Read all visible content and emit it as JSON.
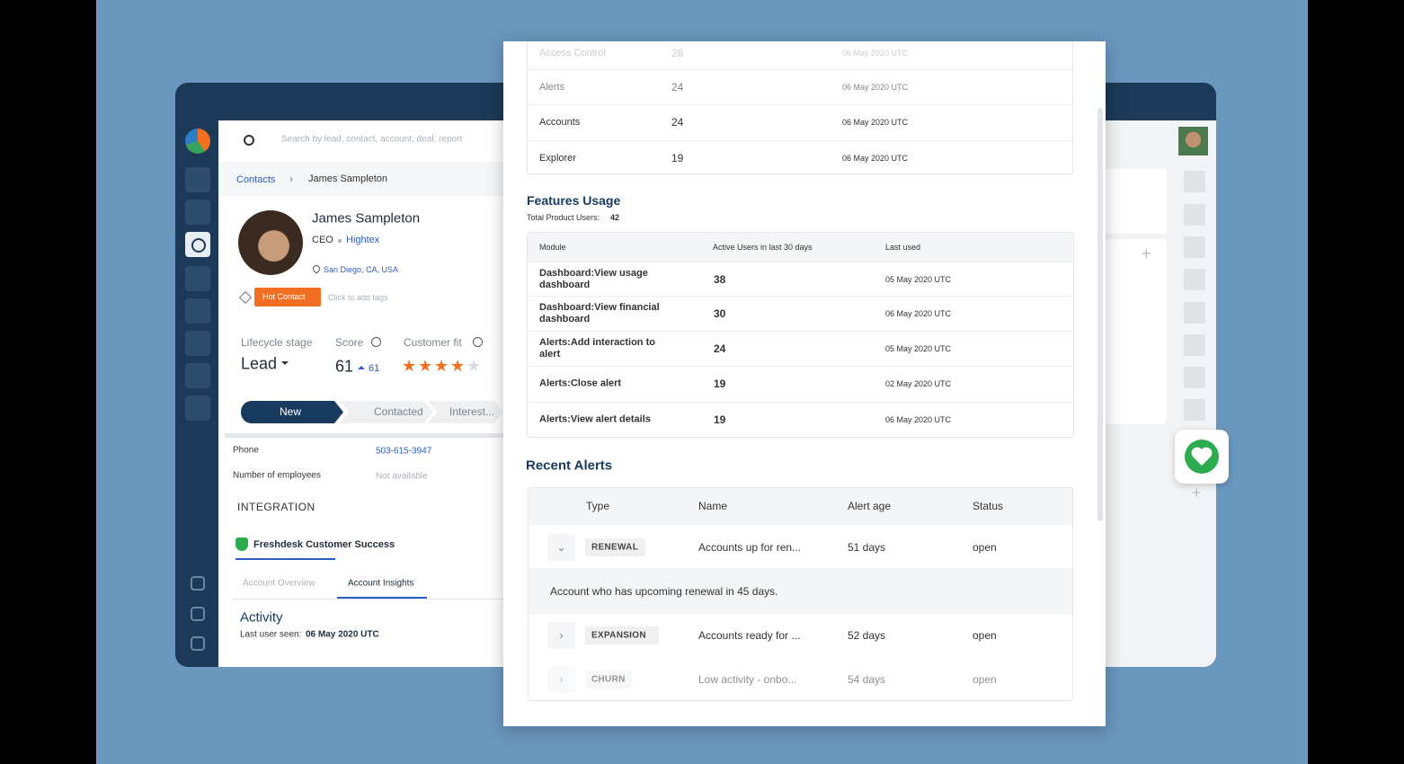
{
  "search": {
    "placeholder": "Search by lead, contact, account, deal, report"
  },
  "breadcrumb": [
    "Contacts",
    "James Sampleton"
  ],
  "profile": {
    "name": "James Sampleton",
    "title": "CEO",
    "company": "Hightex",
    "location": "San Diego, CA, USA",
    "tag": "Hot Contact",
    "tag_hint": "Click to add tags"
  },
  "stats": {
    "lifecycle_label": "Lifecycle stage",
    "lifecycle": "Lead",
    "score_label": "Score",
    "score": 61,
    "score_change": 61,
    "fit_label": "Customer fit",
    "fit": 4
  },
  "pipeline": [
    "New",
    "Contacted",
    "Interest..."
  ],
  "fields": [
    [
      "Phone",
      "503-615-3947"
    ],
    [
      "Number of employees",
      "Not available"
    ]
  ],
  "integration": {
    "heading": "INTEGRATION",
    "app": "Freshdesk Customer Success",
    "tabs": [
      "Account Overview",
      "Account Insights"
    ]
  },
  "activity": {
    "title": "Activity",
    "last_seen_label": "Last user seen:",
    "last_seen": "06 May 2020 UTC"
  },
  "modules_table": {
    "rows": [
      [
        "Access Control",
        28,
        "06 May 2020 UTC"
      ],
      [
        "Alerts",
        24,
        "06 May 2020 UTC"
      ],
      [
        "Accounts",
        24,
        "06 May 2020 UTC"
      ],
      [
        "Explorer",
        19,
        "06 May 2020 UTC"
      ]
    ]
  },
  "features": {
    "title": "Features Usage",
    "total_label": "Total Product Users:",
    "total": 42,
    "header": [
      "Module",
      "Active Users in last 30 days",
      "Last used"
    ],
    "rows": [
      [
        "Dashboard:View usage dashboard",
        38,
        "05 May 2020 UTC"
      ],
      [
        "Dashboard:View financial dashboard",
        30,
        "06 May 2020 UTC"
      ],
      [
        "Alerts:Add interaction to alert",
        24,
        "05 May 2020 UTC"
      ],
      [
        "Alerts:Close alert",
        19,
        "02 May 2020 UTC"
      ],
      [
        "Alerts:View alert details",
        19,
        "06 May 2020 UTC"
      ]
    ]
  },
  "alerts": {
    "title": "Recent Alerts",
    "header": [
      "Type",
      "Name",
      "Alert age",
      "Status"
    ],
    "rows": [
      [
        "RENEWAL",
        "Accounts up for ren...",
        "51 days",
        "open"
      ],
      [
        "EXPANSION",
        "Accounts ready for ...",
        "52 days",
        "open"
      ],
      [
        "CHURN",
        "Low activity - onbo...",
        "54 days",
        "open"
      ]
    ],
    "detail": "Account who has upcoming renewal in 45 days."
  }
}
